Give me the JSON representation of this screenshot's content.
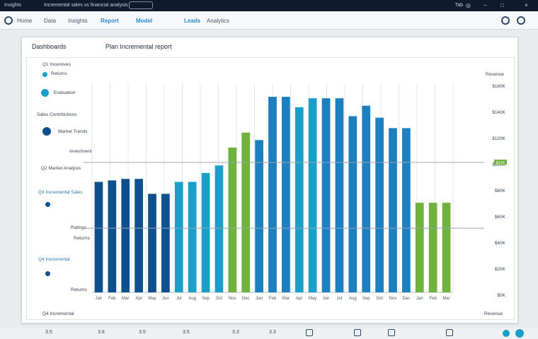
{
  "titlebar": {
    "left_text": "Insights",
    "center_text": "Incremental sales vs financial analysis",
    "right_text": "Tab",
    "close_glyph": "×",
    "min_glyph": "–",
    "max_glyph": "□"
  },
  "toolbar": {
    "items": [
      "Home",
      "Data",
      "Insights",
      "Report",
      "Model",
      "Leads",
      "Analytics"
    ],
    "active_indices": [
      2,
      3,
      4
    ]
  },
  "card": {
    "left_title": "Dashboards",
    "main_title": "Plan Incremental report"
  },
  "sidebar": {
    "legend_title": "Q1 Incentives",
    "legend_item": "Returns",
    "rows": [
      {
        "label": "Evaluation",
        "dot": true
      },
      {
        "label": "Sales Contributions",
        "dot": false
      },
      {
        "label": "Market Trends",
        "dot": true
      },
      {
        "label": "Investment",
        "dot": false
      },
      {
        "label": "Q2 Market Analysis",
        "dot": false
      },
      {
        "label": "Q3 Incremental Sales",
        "dot": true
      },
      {
        "label": "Ratings",
        "dot": false
      },
      {
        "label": "Returns",
        "dot": false
      },
      {
        "label": "Q4 Incremental",
        "dot": true
      },
      {
        "label": "Returns",
        "dot": false
      }
    ],
    "footer": "Q4 Incremental"
  },
  "right_axis": {
    "header": "Revenue",
    "labels": [
      "$160K",
      "$140K",
      "$120K",
      "$100K",
      "$80K",
      "$60K",
      "$40K",
      "$20K",
      "$0K"
    ],
    "highlight": "$11K",
    "footer": "Revenue"
  },
  "colors": {
    "navy": "#0e4f8e",
    "teal": "#1aa0c8",
    "mid": "#1c7fc0",
    "green": "#6fb23e",
    "grid": "#e3e7ec",
    "refline": "#9aa4b0"
  },
  "chart_data": {
    "type": "bar",
    "ylim": [
      0,
      140
    ],
    "reference_lines": [
      87,
      43
    ],
    "categories": [
      "Jan",
      "Feb",
      "Mar",
      "Apr",
      "May",
      "Jun",
      "Jul",
      "Aug",
      "Sep",
      "Oct",
      "Nov",
      "Dec",
      "Jan",
      "Feb",
      "Mar",
      "Apr",
      "May",
      "Jun",
      "Jul",
      "Aug",
      "Sep",
      "Oct",
      "Nov",
      "Dec",
      "Jan",
      "Feb",
      "Mar"
    ],
    "values": [
      74,
      75,
      76,
      76,
      66,
      66,
      74,
      74,
      80,
      85,
      97,
      107,
      102,
      131,
      131,
      124,
      130,
      130,
      130,
      118,
      125,
      117,
      110,
      110,
      60,
      60,
      60
    ],
    "bar_colors": [
      "navy",
      "navy",
      "navy",
      "navy",
      "navy",
      "navy",
      "teal",
      "teal",
      "teal",
      "teal",
      "green",
      "green",
      "mid",
      "mid",
      "mid",
      "teal",
      "teal",
      "mid",
      "mid",
      "mid",
      "mid",
      "mid",
      "mid",
      "mid",
      "green",
      "green",
      "green"
    ]
  },
  "taskbar": {
    "items": [
      "3.5",
      "3.8",
      "3.5",
      "3.5",
      "3.3",
      "3.3",
      "0",
      "3",
      "3",
      "3"
    ]
  }
}
